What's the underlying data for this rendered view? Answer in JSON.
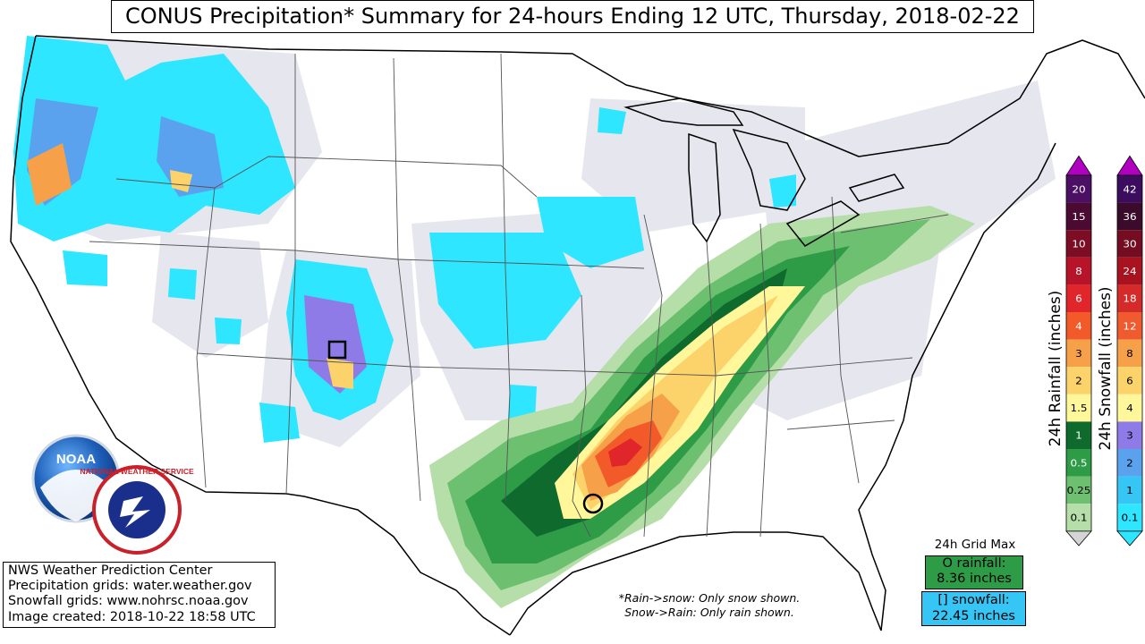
{
  "title": "CONUS Precipitation* Summary for 24-hours Ending 12 UTC, Thursday, 2018-02-22",
  "info_box": {
    "line1": "NWS Weather Prediction Center",
    "line2": "Precipitation grids: water.weather.gov",
    "line3": "Snowfall grids: www.nohrsc.noaa.gov",
    "line4": "Image created: 2018-10-22 18:58 UTC"
  },
  "logos": {
    "noaa_text": "NOAA",
    "nws_text": "NATIONAL WEATHER SERVICE"
  },
  "note": {
    "line1": "*Rain->snow: Only snow shown.",
    "line2": "Snow->Rain: Only rain shown."
  },
  "grid_max": {
    "title": "24h Grid Max",
    "rain_label": "O rainfall:",
    "rain_value": "8.36 inches",
    "snow_label": "[] snowfall:",
    "snow_value": "22.45 inches"
  },
  "rain_scale": {
    "title": "24h Rainfall (inches)",
    "levels": [
      {
        "label": "20",
        "color": "#4b0f63"
      },
      {
        "label": "15",
        "color": "#4a0a32"
      },
      {
        "label": "10",
        "color": "#7d0d24"
      },
      {
        "label": "8",
        "color": "#b7142a"
      },
      {
        "label": "6",
        "color": "#e0262b"
      },
      {
        "label": "4",
        "color": "#f25a2a"
      },
      {
        "label": "3",
        "color": "#f7a04a"
      },
      {
        "label": "2",
        "color": "#fcd26a"
      },
      {
        "label": "1.5",
        "color": "#fff79a"
      },
      {
        "label": "1",
        "color": "#0f6b2d"
      },
      {
        "label": "0.5",
        "color": "#2e9b47"
      },
      {
        "label": "0.25",
        "color": "#6cc070"
      },
      {
        "label": "0.1",
        "color": "#b6dea9"
      }
    ],
    "cap_top": "#b000c0",
    "cap_bottom": "#d4d4d4"
  },
  "snow_scale": {
    "title": "24h Snowfall (inches)",
    "levels": [
      {
        "label": "42",
        "color": "#3c0c5e"
      },
      {
        "label": "36",
        "color": "#3b0b2c"
      },
      {
        "label": "30",
        "color": "#740d22"
      },
      {
        "label": "24",
        "color": "#a8131f"
      },
      {
        "label": "18",
        "color": "#d42a2a"
      },
      {
        "label": "12",
        "color": "#ef5a2e"
      },
      {
        "label": "8",
        "color": "#f7a04a"
      },
      {
        "label": "6",
        "color": "#fcd26a"
      },
      {
        "label": "4",
        "color": "#fff79a"
      },
      {
        "label": "3",
        "color": "#8e7be8"
      },
      {
        "label": "2",
        "color": "#5aa2ee"
      },
      {
        "label": "1",
        "color": "#36c6f5"
      },
      {
        "label": "0.1",
        "color": "#2ee6ff"
      }
    ],
    "cap_top": "#b000c0",
    "cap_bottom": "#2ee6ff"
  }
}
